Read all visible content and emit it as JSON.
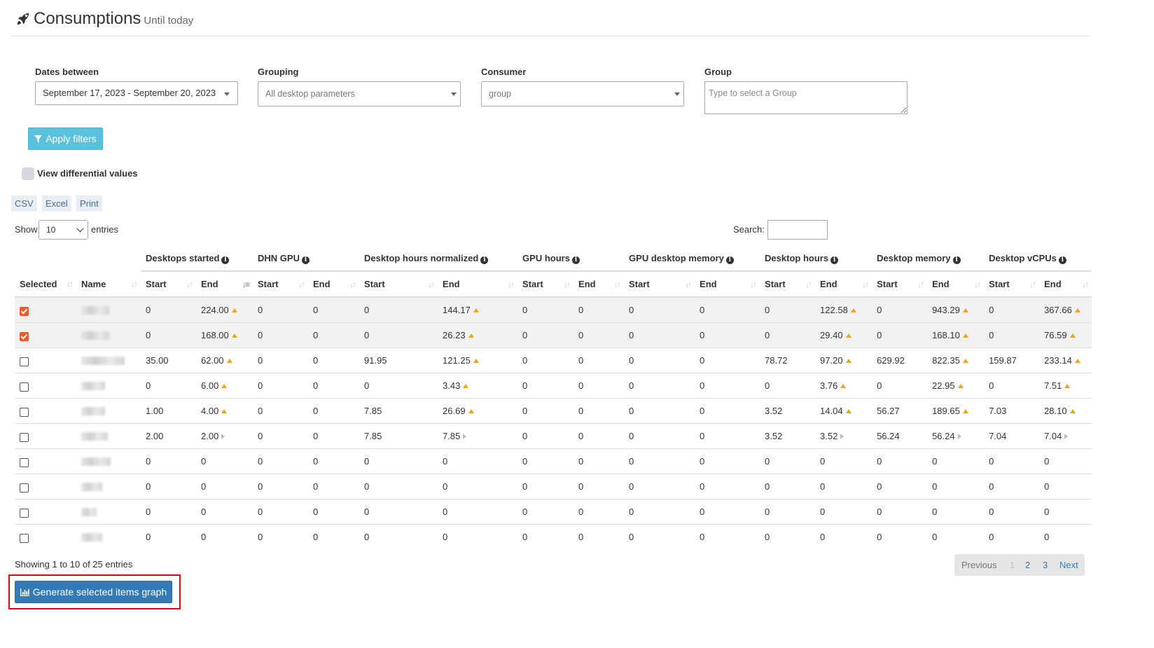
{
  "header": {
    "title": "Consumptions",
    "subtitle": "Until today",
    "icon": "rocket-icon"
  },
  "filters": {
    "dates": {
      "label": "Dates between",
      "value": "September 17, 2023 - September 20, 2023"
    },
    "grouping": {
      "label": "Grouping",
      "value": "All desktop parameters"
    },
    "consumer": {
      "label": "Consumer",
      "value": "group"
    },
    "group": {
      "label": "Group",
      "placeholder": "Type to select a Group"
    },
    "apply_label": "Apply filters",
    "differential_label": "View differential values"
  },
  "export": {
    "csv": "CSV",
    "excel": "Excel",
    "print": "Print"
  },
  "length": {
    "show": "Show",
    "value": "10",
    "entries": "entries"
  },
  "search": {
    "label": "Search:"
  },
  "table": {
    "groups": [
      "Desktops started",
      "DHN GPU",
      "Desktop hours normalized",
      "GPU hours",
      "GPU desktop memory",
      "Desktop hours",
      "Desktop memory",
      "Desktop vCPUs"
    ],
    "selected_header": "Selected",
    "name_header": "Name",
    "start_label": "Start",
    "end_label": "End",
    "rows": [
      {
        "selected": true,
        "cells": [
          "0",
          "224.00",
          "0",
          "0",
          "0",
          "144.17",
          "0",
          "0",
          "0",
          "0",
          "0",
          "122.58",
          "0",
          "943.29",
          "0",
          "367.66"
        ],
        "trend": "up"
      },
      {
        "selected": true,
        "cells": [
          "0",
          "168.00",
          "0",
          "0",
          "0",
          "26.23",
          "0",
          "0",
          "0",
          "0",
          "0",
          "29.40",
          "0",
          "168.10",
          "0",
          "76.59"
        ],
        "trend": "up"
      },
      {
        "selected": false,
        "cells": [
          "35.00",
          "62.00",
          "0",
          "0",
          "91.95",
          "121.25",
          "0",
          "0",
          "0",
          "0",
          "78.72",
          "97.20",
          "629.92",
          "822.35",
          "159.87",
          "233.14"
        ],
        "trend": "up"
      },
      {
        "selected": false,
        "cells": [
          "0",
          "6.00",
          "0",
          "0",
          "0",
          "3.43",
          "0",
          "0",
          "0",
          "0",
          "0",
          "3.76",
          "0",
          "22.95",
          "0",
          "7.51"
        ],
        "trend": "up"
      },
      {
        "selected": false,
        "cells": [
          "1.00",
          "4.00",
          "0",
          "0",
          "7.85",
          "26.69",
          "0",
          "0",
          "0",
          "0",
          "3.52",
          "14.04",
          "56.27",
          "189.65",
          "7.03",
          "28.10"
        ],
        "trend": "up"
      },
      {
        "selected": false,
        "cells": [
          "2.00",
          "2.00",
          "0",
          "0",
          "7.85",
          "7.85",
          "0",
          "0",
          "0",
          "0",
          "3.52",
          "3.52",
          "56.24",
          "56.24",
          "7.04",
          "7.04"
        ],
        "trend": "equal"
      },
      {
        "selected": false,
        "cells": [
          "0",
          "0",
          "0",
          "0",
          "0",
          "0",
          "0",
          "0",
          "0",
          "0",
          "0",
          "0",
          "0",
          "0",
          "0",
          "0"
        ],
        "trend": "none"
      },
      {
        "selected": false,
        "cells": [
          "0",
          "0",
          "0",
          "0",
          "0",
          "0",
          "0",
          "0",
          "0",
          "0",
          "0",
          "0",
          "0",
          "0",
          "0",
          "0"
        ],
        "trend": "none"
      },
      {
        "selected": false,
        "cells": [
          "0",
          "0",
          "0",
          "0",
          "0",
          "0",
          "0",
          "0",
          "0",
          "0",
          "0",
          "0",
          "0",
          "0",
          "0",
          "0"
        ],
        "trend": "none"
      },
      {
        "selected": false,
        "cells": [
          "0",
          "0",
          "0",
          "0",
          "0",
          "0",
          "0",
          "0",
          "0",
          "0",
          "0",
          "0",
          "0",
          "0",
          "0",
          "0"
        ],
        "trend": "none"
      }
    ]
  },
  "footer": {
    "info": "Showing 1 to 10 of 25 entries",
    "pagination": {
      "previous": "Previous",
      "pages": [
        "1",
        "2",
        "3"
      ],
      "current": "1",
      "next": "Next"
    },
    "graph_button": "Generate selected items graph"
  },
  "colors": {
    "accent": "#337ab7",
    "info_button": "#5bc0de",
    "checked": "#ee5a24",
    "trend_up": "#f0a30a",
    "highlight": "#e0000f"
  }
}
